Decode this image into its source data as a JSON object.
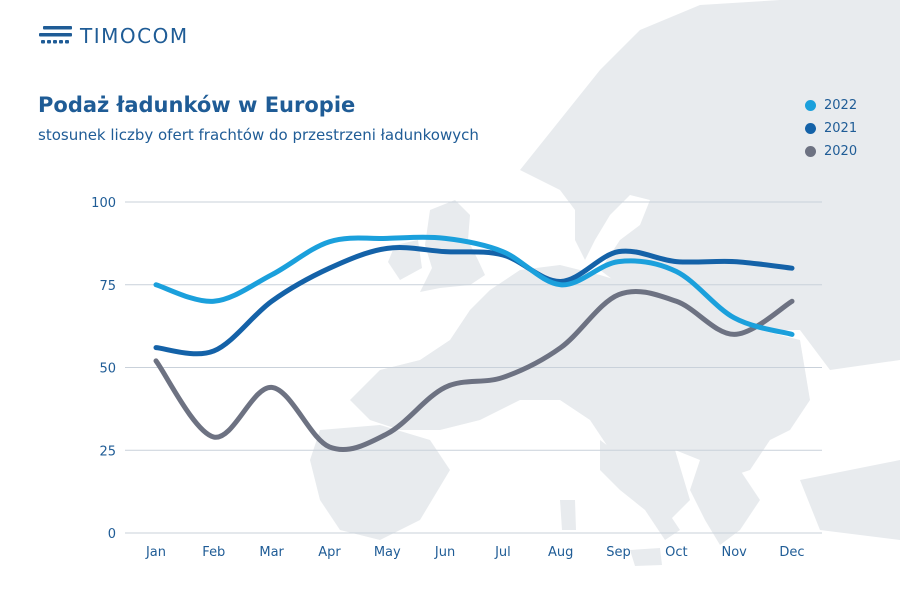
{
  "brand": {
    "name": "TIMOCOM",
    "icon": "timocom-logo-icon",
    "color": "#1f5c96"
  },
  "chart_data": {
    "type": "line",
    "title": "Podaż ładunków w Europie",
    "subtitle": "stosunek liczby ofert frachtów do przestrzeni ładunkowych",
    "categories": [
      "Jan",
      "Feb",
      "Mar",
      "Apr",
      "May",
      "Jun",
      "Jul",
      "Aug",
      "Sep",
      "Oct",
      "Nov",
      "Dec"
    ],
    "y_ticks": [
      0,
      25,
      50,
      75,
      100
    ],
    "ylim": [
      0,
      100
    ],
    "grid": true,
    "legend_position": "top-right",
    "background": "map of Europe (decorative)",
    "series": [
      {
        "name": "2022",
        "color": "#1ba0dc",
        "values": [
          75,
          70,
          78,
          88,
          89,
          89,
          85,
          75,
          82,
          79,
          65,
          60
        ]
      },
      {
        "name": "2021",
        "color": "#1462a8",
        "values": [
          56,
          55,
          70,
          80,
          86,
          85,
          84,
          76,
          85,
          82,
          82,
          80
        ]
      },
      {
        "name": "2020",
        "color": "#6d7282",
        "values": [
          52,
          29,
          44,
          26,
          30,
          44,
          47,
          56,
          72,
          70,
          60,
          70
        ]
      }
    ]
  }
}
